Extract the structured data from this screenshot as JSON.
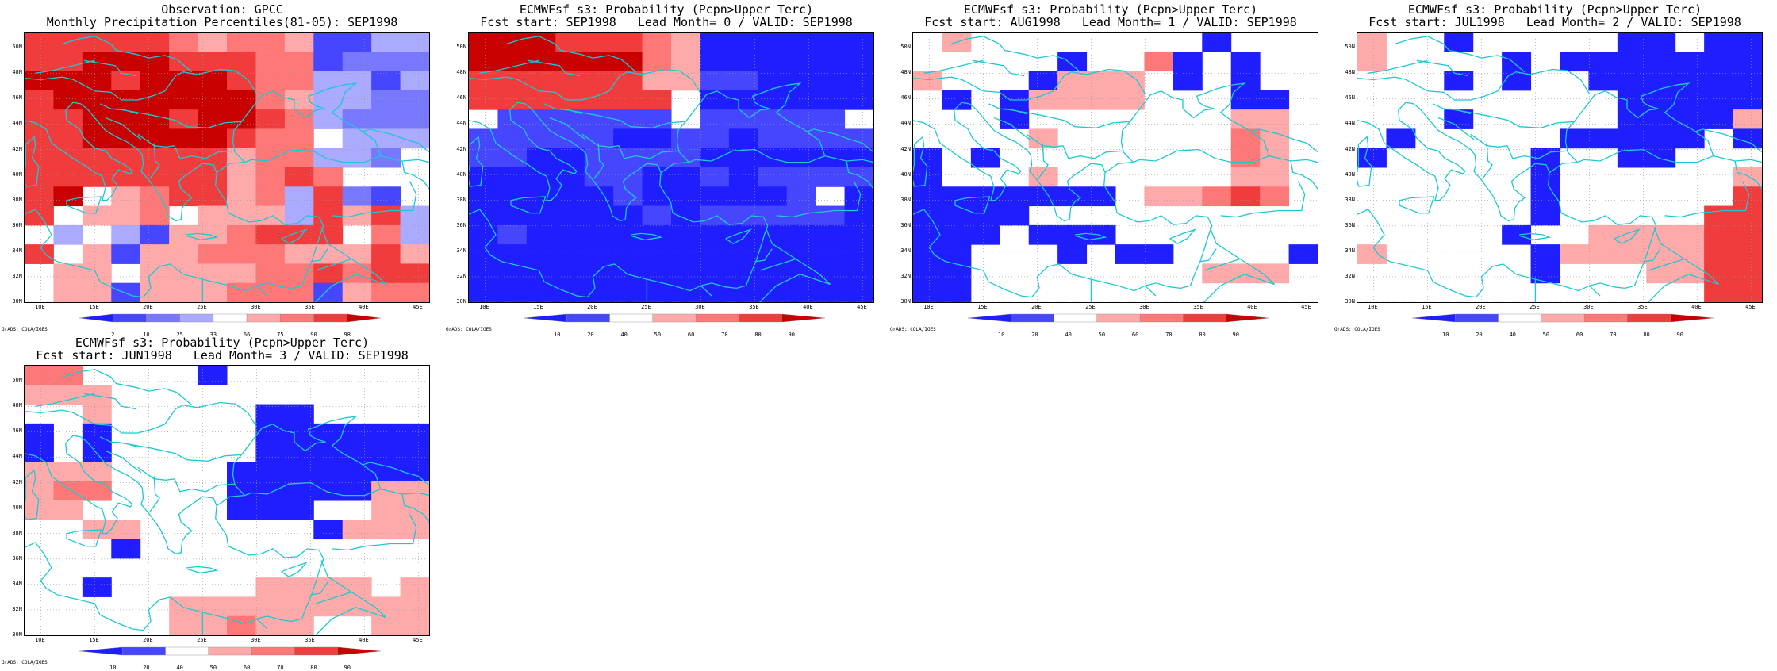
{
  "map": {
    "lat_labels": [
      "50N",
      "48N",
      "46N",
      "44N",
      "42N",
      "40N",
      "38N",
      "36N",
      "34N",
      "32N",
      "30N"
    ],
    "lon_labels": [
      "10E",
      "15E",
      "20E",
      "25E",
      "30E",
      "35E",
      "40E",
      "45E"
    ],
    "credit": "GrADS: COLA/IGES"
  },
  "colors": {
    "coast": "#1ec8d2",
    "scale_obs": [
      "#1e1eff",
      "#4646ff",
      "#7878ff",
      "#aaaaff",
      "#ffffff",
      "#ffaaaa",
      "#ff7878",
      "#f03c3c",
      "#c80000"
    ],
    "scale_prob": [
      "#1e1eff",
      "#4646ff",
      "#ffffff",
      "#ffaaaa",
      "#ff7878",
      "#f03c3c",
      "#c80000"
    ]
  },
  "panels": [
    {
      "title1": "Observation: GPCC",
      "title2": "Monthly Precipitation Percentiles(81-05): SEP1998",
      "cbar_ticks": [
        "2",
        "10",
        "25",
        "33",
        "66",
        "75",
        "90",
        "98"
      ],
      "scale": "obs",
      "grid": [
        "77777656651133",
        "77888777661222",
        "88878887663313",
        "78888888653322",
        "77888788763222",
        "77888887664333",
        "77777775663324",
        "77777775676444",
        "78456775637214",
        "74556455537573",
        "43431556777463",
        "74515566655575",
        "45545555667677",
        "45515556661566"
      ]
    },
    {
      "title1": "ECMWFsf s3: Probability (Pcpn>Upper Terc)",
      "title2": "Fcst start: SEP1998   Lead Month= 0 / VALID: SEP1998",
      "cbar_ticks": [
        "10",
        "20",
        "40",
        "50",
        "60",
        "70",
        "80",
        "90"
      ],
      "scale": "prob",
      "grid": [
        "66655543000000",
        "66666643000000",
        "55555533110000",
        "55555552000000",
        "21111112111112",
        "11111001101111",
        "11001111000000",
        "00001100101111",
        "00000100000120",
        "00000010111110",
        "01000000000000",
        "00000000000000",
        "00000000000000",
        "00000000000000"
      ]
    },
    {
      "title1": "ECMWFsf s3: Probability (Pcpn>Upper Terc)",
      "title2": "Fcst start: AUG1998   Lead Month= 1 / VALID: SEP1998",
      "cbar_ticks": [
        "10",
        "20",
        "40",
        "50",
        "60",
        "70",
        "80",
        "90"
      ],
      "scale": "prob",
      "grid": [
        "23222222220222",
        "22222022402022",
        "32220333202022",
        "20203333222002",
        "22202222222332",
        "22223222222432",
        "02022222222432",
        "02223222222332",
        "00000002334542",
        "00002222222222",
        "00020002222222",
        "00222020022220",
        "00222222223332",
        "00222222222222"
      ]
    },
    {
      "title1": "ECMWFsf s3: Probability (Pcpn>Upper Terc)",
      "title2": "Fcst start: JUL1998   Lead Month= 2 / VALID: SEP1998",
      "cbar_ticks": [
        "10",
        "20",
        "40",
        "50",
        "60",
        "70",
        "80",
        "90"
      ],
      "scale": "prob",
      "grid": [
        "32202222200200",
        "32222020000000",
        "22202022000000",
        "22222222200000",
        "22202222200003",
        "20222220000020",
        "02222202200222",
        "22222202222223",
        "22222202222225",
        "22222202222255",
        "22222022333355",
        "32222203333355",
        "22222202223355",
        "22222222222255"
      ]
    },
    {
      "title1": "ECMWFsf s3: Probability (Pcpn>Upper Terc)",
      "title2": "Fcst start: JUN1998   Lead Month= 3 / VALID: SEP1998",
      "cbar_ticks": [
        "10",
        "20",
        "40",
        "50",
        "60",
        "70",
        "80",
        "90"
      ],
      "scale": "prob",
      "grid": [
        "44222202222222",
        "33322222222222",
        "22322222002222",
        "02022222000000",
        "02022222000000",
        "33322220000000",
        "34422220000033",
        "33222220002233",
        "22332222220333",
        "22202222222222",
        "22222222222222",
        "22022222333323",
        "22222333333333",
        "22222334332233"
      ]
    }
  ]
}
